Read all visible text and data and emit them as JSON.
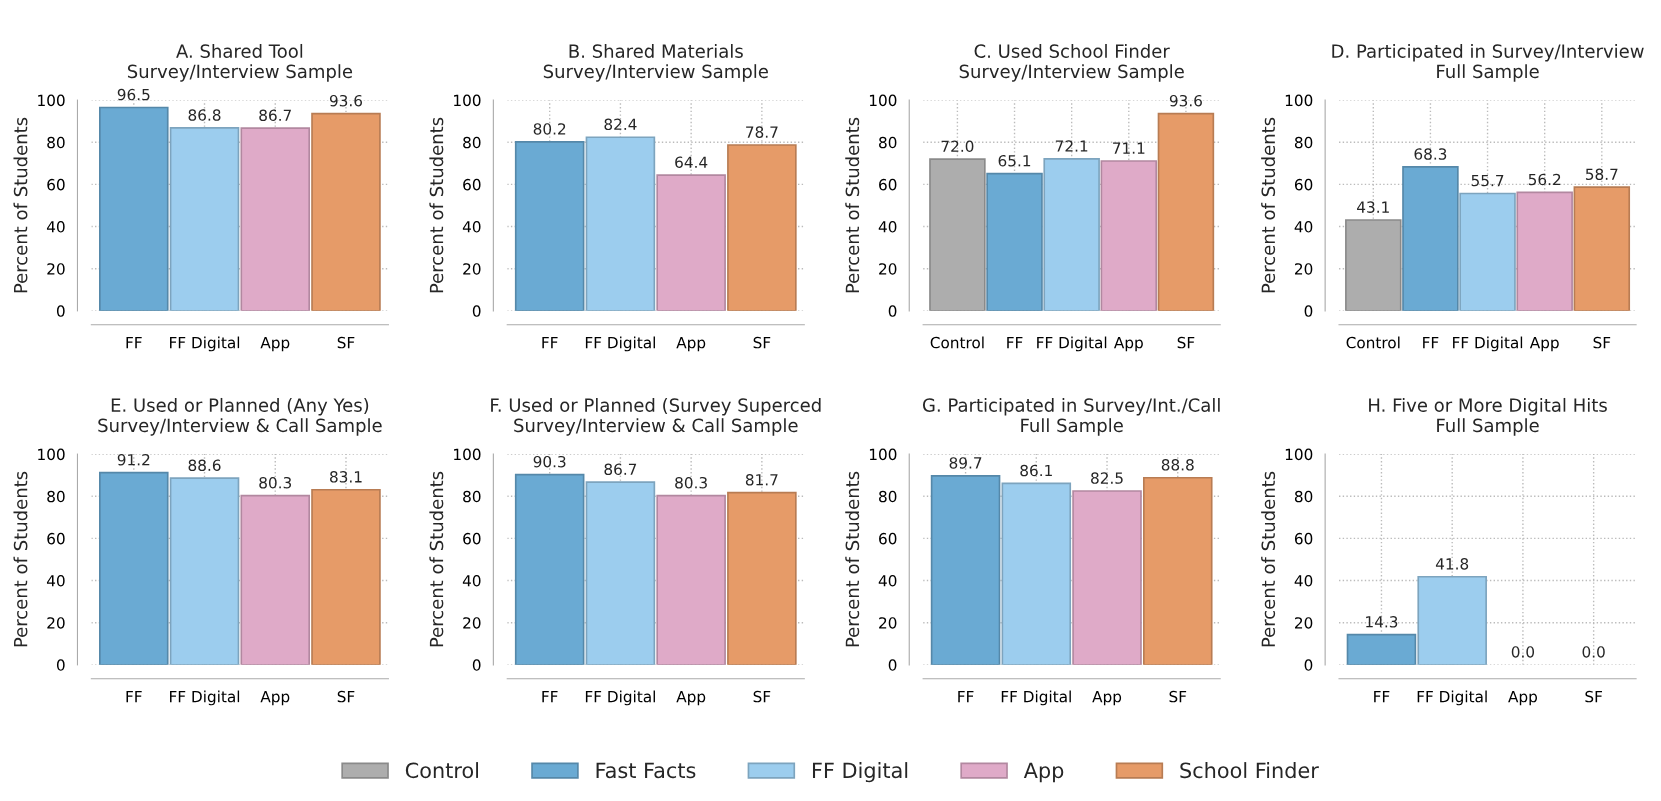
{
  "chart_data": [
    {
      "type": "bar",
      "title": "A. Shared Tool\nSurvey/Interview Sample",
      "ylabel": "Percent of Students",
      "categories": [
        "FF",
        "FF Digital",
        "App",
        "SF"
      ],
      "values": [
        96.5,
        86.8,
        86.7,
        93.6
      ],
      "colors": [
        "#6aaad3",
        "#9ccdee",
        "#dfaac8",
        "#e69b68"
      ],
      "value_labels": [
        "96.5",
        "86.8",
        "86.7",
        "93.6"
      ],
      "ylim": [
        0,
        100
      ],
      "yticks": [
        0,
        20,
        40,
        60,
        80,
        100
      ],
      "grid": true
    },
    {
      "type": "bar",
      "title": "B. Shared Materials\nSurvey/Interview Sample",
      "ylabel": "Percent of Students",
      "categories": [
        "FF",
        "FF Digital",
        "App",
        "SF"
      ],
      "values": [
        80.2,
        82.4,
        64.4,
        78.7
      ],
      "colors": [
        "#6aaad3",
        "#9ccdee",
        "#dfaac8",
        "#e69b68"
      ],
      "value_labels": [
        "80.2",
        "82.4",
        "64.4",
        "78.7"
      ],
      "ylim": [
        0,
        100
      ],
      "yticks": [
        0,
        20,
        40,
        60,
        80,
        100
      ],
      "grid": true
    },
    {
      "type": "bar",
      "title": "C. Used School Finder\nSurvey/Interview Sample",
      "ylabel": "Percent of Students",
      "categories": [
        "Control",
        "FF",
        "FF Digital",
        "App",
        "SF"
      ],
      "series": [
        {
          "name": "Control",
          "color": "#adadad",
          "values": [
            72.0,
            null,
            null,
            null,
            null
          ],
          "value_labels": [
            "72.0",
            null,
            null,
            null,
            null
          ]
        },
        {
          "name": "Fast Facts",
          "color": "#6aaad3",
          "values": [
            null,
            65.1,
            null,
            null,
            null
          ],
          "value_labels": [
            null,
            "65.1",
            null,
            null,
            null
          ]
        },
        {
          "name": "FF Digital",
          "color": "#9ccdee",
          "values": [
            null,
            null,
            72.1,
            null,
            null
          ],
          "value_labels": [
            null,
            null,
            "72.1",
            null,
            null
          ]
        },
        {
          "name": "App",
          "color": "#dfaac8",
          "values": [
            null,
            null,
            null,
            71.1,
            null
          ],
          "value_labels": [
            null,
            null,
            null,
            "71.1",
            null
          ]
        },
        {
          "name": "School Finder",
          "color": "#e69b68",
          "values": [
            null,
            null,
            null,
            null,
            93.6
          ],
          "value_labels": [
            null,
            null,
            null,
            null,
            "93.6"
          ]
        }
      ],
      "ylim": [
        0,
        100
      ],
      "yticks": [
        0,
        20,
        40,
        60,
        80,
        100
      ],
      "grid": true,
      "legend": "bottom"
    },
    {
      "type": "bar",
      "title": "D. Participated in Survey/Interview\nFull Sample",
      "ylabel": "Percent of Students",
      "categories": [
        "Control",
        "FF",
        "FF Digital",
        "App",
        "SF"
      ],
      "values": [
        43.1,
        68.3,
        55.7,
        56.2,
        58.7
      ],
      "colors": [
        "#adadad",
        "#6aaad3",
        "#9ccdee",
        "#dfaac8",
        "#e69b68"
      ],
      "value_labels": [
        "43.1",
        "68.3",
        "55.7",
        "56.2",
        "58.7"
      ],
      "ylim": [
        0,
        100
      ],
      "yticks": [
        0,
        20,
        40,
        60,
        80,
        100
      ],
      "grid": true
    },
    {
      "type": "bar",
      "title": "E. Used or Planned (Any Yes)\nSurvey/Interview & Call Sample",
      "ylabel": "Percent of Students",
      "categories": [
        "FF",
        "FF Digital",
        "App",
        "SF"
      ],
      "values": [
        91.2,
        88.6,
        80.3,
        83.1
      ],
      "colors": [
        "#6aaad3",
        "#9ccdee",
        "#dfaac8",
        "#e69b68"
      ],
      "value_labels": [
        "91.2",
        "88.6",
        "80.3",
        "83.1"
      ],
      "ylim": [
        0,
        100
      ],
      "yticks": [
        0,
        20,
        40,
        60,
        80,
        100
      ],
      "grid": true
    },
    {
      "type": "bar",
      "title": "F. Used or Planned (Survey Superced\nSurvey/Interview & Call Sample",
      "ylabel": "Percent of Students",
      "categories": [
        "FF",
        "FF Digital",
        "App",
        "SF"
      ],
      "values": [
        90.3,
        86.7,
        80.3,
        81.7
      ],
      "colors": [
        "#6aaad3",
        "#9ccdee",
        "#dfaac8",
        "#e69b68"
      ],
      "value_labels": [
        "90.3",
        "86.7",
        "80.3",
        "81.7"
      ],
      "ylim": [
        0,
        100
      ],
      "yticks": [
        0,
        20,
        40,
        60,
        80,
        100
      ],
      "grid": true
    },
    {
      "type": "bar",
      "title": "G. Participated in Survey/Int./Call\nFull Sample",
      "ylabel": "Percent of Students",
      "categories": [
        "FF",
        "FF Digital",
        "App",
        "SF"
      ],
      "values": [
        89.7,
        86.1,
        82.5,
        88.8
      ],
      "colors": [
        "#6aaad3",
        "#9ccdee",
        "#dfaac8",
        "#e69b68"
      ],
      "value_labels": [
        "89.7",
        "86.1",
        "82.5",
        "88.8"
      ],
      "ylim": [
        0,
        100
      ],
      "yticks": [
        0,
        20,
        40,
        60,
        80,
        100
      ],
      "grid": true
    },
    {
      "type": "bar",
      "title": "H. Five or More Digital Hits\nFull Sample",
      "ylabel": "Percent of Students",
      "categories": [
        "FF",
        "FF Digital",
        "App",
        "SF"
      ],
      "values": [
        14.3,
        41.8,
        0.0,
        0.0
      ],
      "colors": [
        "#6aaad3",
        "#9ccdee",
        "#dfaac8",
        "#e69b68"
      ],
      "value_labels": [
        "14.3",
        "41.8",
        "0.0",
        "0.0"
      ],
      "ylim": [
        0,
        100
      ],
      "yticks": [
        0,
        20,
        40,
        60,
        80,
        100
      ],
      "grid": true
    }
  ]
}
